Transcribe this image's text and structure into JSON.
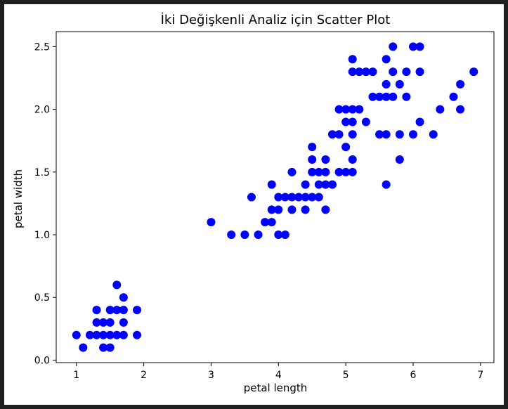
{
  "chart_data": {
    "type": "scatter",
    "title": "İki Değişkenli Analiz için Scatter Plot",
    "xlabel": "petal length",
    "ylabel": "petal width",
    "xlim": [
      0.7,
      7.2
    ],
    "ylim": [
      -0.02,
      2.62
    ],
    "xticks": [
      1,
      2,
      3,
      4,
      5,
      6,
      7
    ],
    "yticks": [
      0.0,
      0.5,
      1.0,
      1.5,
      2.0,
      2.5
    ],
    "xtick_labels": [
      "1",
      "2",
      "3",
      "4",
      "5",
      "6",
      "7"
    ],
    "ytick_labels": [
      "0.0",
      "0.5",
      "1.0",
      "1.5",
      "2.0",
      "2.5"
    ],
    "grid": false,
    "series": [
      {
        "color": "#0000ff",
        "points": [
          [
            1.0,
            0.2
          ],
          [
            1.1,
            0.1
          ],
          [
            1.2,
            0.2
          ],
          [
            1.3,
            0.2
          ],
          [
            1.3,
            0.3
          ],
          [
            1.3,
            0.4
          ],
          [
            1.4,
            0.1
          ],
          [
            1.4,
            0.2
          ],
          [
            1.4,
            0.3
          ],
          [
            1.5,
            0.1
          ],
          [
            1.5,
            0.2
          ],
          [
            1.5,
            0.3
          ],
          [
            1.5,
            0.4
          ],
          [
            1.6,
            0.2
          ],
          [
            1.6,
            0.4
          ],
          [
            1.6,
            0.6
          ],
          [
            1.7,
            0.2
          ],
          [
            1.7,
            0.3
          ],
          [
            1.7,
            0.4
          ],
          [
            1.7,
            0.5
          ],
          [
            1.9,
            0.2
          ],
          [
            1.9,
            0.4
          ],
          [
            3.0,
            1.1
          ],
          [
            3.3,
            1.0
          ],
          [
            3.5,
            1.0
          ],
          [
            3.6,
            1.3
          ],
          [
            3.7,
            1.0
          ],
          [
            3.8,
            1.1
          ],
          [
            3.9,
            1.1
          ],
          [
            3.9,
            1.2
          ],
          [
            3.9,
            1.4
          ],
          [
            4.0,
            1.0
          ],
          [
            4.0,
            1.2
          ],
          [
            4.0,
            1.3
          ],
          [
            4.1,
            1.0
          ],
          [
            4.1,
            1.3
          ],
          [
            4.2,
            1.2
          ],
          [
            4.2,
            1.3
          ],
          [
            4.2,
            1.5
          ],
          [
            4.3,
            1.3
          ],
          [
            4.4,
            1.2
          ],
          [
            4.4,
            1.3
          ],
          [
            4.4,
            1.4
          ],
          [
            4.5,
            1.3
          ],
          [
            4.5,
            1.5
          ],
          [
            4.5,
            1.6
          ],
          [
            4.5,
            1.7
          ],
          [
            4.6,
            1.3
          ],
          [
            4.6,
            1.4
          ],
          [
            4.6,
            1.5
          ],
          [
            4.7,
            1.2
          ],
          [
            4.7,
            1.4
          ],
          [
            4.7,
            1.5
          ],
          [
            4.7,
            1.6
          ],
          [
            4.8,
            1.4
          ],
          [
            4.8,
            1.8
          ],
          [
            4.9,
            1.5
          ],
          [
            4.9,
            1.8
          ],
          [
            4.9,
            2.0
          ],
          [
            5.0,
            1.5
          ],
          [
            5.0,
            1.7
          ],
          [
            5.0,
            1.9
          ],
          [
            5.0,
            2.0
          ],
          [
            5.1,
            1.5
          ],
          [
            5.1,
            1.6
          ],
          [
            5.1,
            1.8
          ],
          [
            5.1,
            1.9
          ],
          [
            5.1,
            2.0
          ],
          [
            5.1,
            2.3
          ],
          [
            5.1,
            2.4
          ],
          [
            5.2,
            2.0
          ],
          [
            5.2,
            2.3
          ],
          [
            5.3,
            1.9
          ],
          [
            5.3,
            2.3
          ],
          [
            5.4,
            2.1
          ],
          [
            5.4,
            2.3
          ],
          [
            5.5,
            1.8
          ],
          [
            5.5,
            2.1
          ],
          [
            5.6,
            1.4
          ],
          [
            5.6,
            1.8
          ],
          [
            5.6,
            2.1
          ],
          [
            5.6,
            2.2
          ],
          [
            5.6,
            2.4
          ],
          [
            5.7,
            2.1
          ],
          [
            5.7,
            2.3
          ],
          [
            5.7,
            2.5
          ],
          [
            5.8,
            1.6
          ],
          [
            5.8,
            1.8
          ],
          [
            5.8,
            2.2
          ],
          [
            5.9,
            2.1
          ],
          [
            5.9,
            2.3
          ],
          [
            6.0,
            1.8
          ],
          [
            6.0,
            2.5
          ],
          [
            6.1,
            1.9
          ],
          [
            6.1,
            2.3
          ],
          [
            6.1,
            2.5
          ],
          [
            6.3,
            1.8
          ],
          [
            6.4,
            2.0
          ],
          [
            6.6,
            2.1
          ],
          [
            6.7,
            2.0
          ],
          [
            6.7,
            2.2
          ],
          [
            6.9,
            2.3
          ]
        ]
      }
    ]
  }
}
